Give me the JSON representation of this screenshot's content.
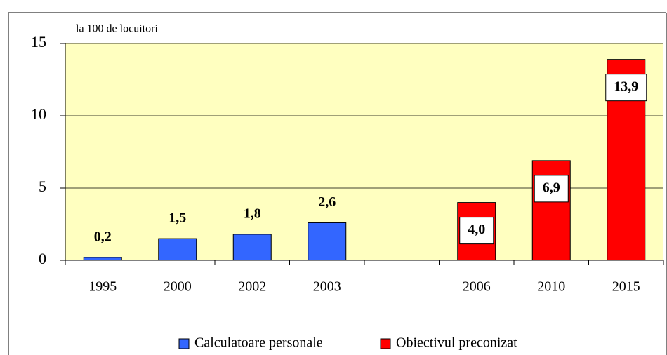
{
  "chart_data": {
    "type": "bar",
    "unit_label": "la 100 de locuitori",
    "categories": [
      "1995",
      "2000",
      "2002",
      "2003",
      null,
      "2006",
      "2010",
      "2015"
    ],
    "series": [
      {
        "name": "Calculatoare personale",
        "color": "#3366ff",
        "values": [
          0.2,
          1.5,
          1.8,
          2.6,
          null,
          null,
          null,
          null
        ],
        "value_labels": [
          "0,2",
          "1,5",
          "1,8",
          "2,6",
          null,
          null,
          null,
          null
        ]
      },
      {
        "name": "Obiectivul preconizat",
        "color": "#ff0000",
        "values": [
          null,
          null,
          null,
          null,
          null,
          4.0,
          6.9,
          13.9
        ],
        "value_labels": [
          null,
          null,
          null,
          null,
          null,
          "4,0",
          "6,9",
          "13,9"
        ]
      }
    ],
    "ylim": [
      0,
      15
    ],
    "yticks": [
      0,
      5,
      10,
      15
    ],
    "grid": true,
    "plot_background": "#ffffc0"
  }
}
